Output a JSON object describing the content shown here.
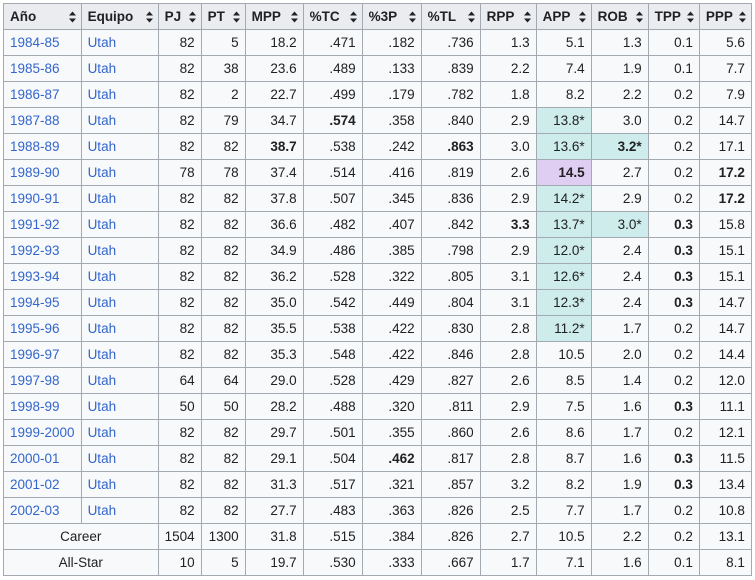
{
  "headers": [
    "Año",
    "Equipo",
    "PJ",
    "PT",
    "MPP",
    "%TC",
    "%3P",
    "%TL",
    "RPP",
    "APP",
    "ROB",
    "TPP",
    "PPP"
  ],
  "colors": {
    "header_bg": "#eaecf0",
    "cell_bg": "#f8f9fa",
    "border": "#a2a9b1",
    "link": "#3366cc",
    "league_leader": "#cfecec",
    "record": "#e0cef2"
  },
  "rows": [
    {
      "year": "1984-85",
      "team": "Utah",
      "pj": "82",
      "pt": "5",
      "mpp": "18.2",
      "tc": ".471",
      "p3": ".182",
      "tl": ".736",
      "rpp": "1.3",
      "app": "5.1",
      "rob": "1.3",
      "tpp": "0.1",
      "ppp": "5.6"
    },
    {
      "year": "1985-86",
      "team": "Utah",
      "pj": "82",
      "pt": "38",
      "mpp": "23.6",
      "tc": ".489",
      "p3": ".133",
      "tl": ".839",
      "rpp": "2.2",
      "app": "7.4",
      "rob": "1.9",
      "tpp": "0.1",
      "ppp": "7.7"
    },
    {
      "year": "1986-87",
      "team": "Utah",
      "pj": "82",
      "pt": "2",
      "mpp": "22.7",
      "tc": ".499",
      "p3": ".179",
      "tl": ".782",
      "rpp": "1.8",
      "app": "8.2",
      "rob": "2.2",
      "tpp": "0.2",
      "ppp": "7.9"
    },
    {
      "year": "1987-88",
      "team": "Utah",
      "pj": "82",
      "pt": "79",
      "mpp": "34.7",
      "tc": ".574",
      "p3": ".358",
      "tl": ".840",
      "rpp": "2.9",
      "app": "13.8*",
      "rob": "3.0",
      "tpp": "0.2",
      "ppp": "14.7"
    },
    {
      "year": "1988-89",
      "team": "Utah",
      "pj": "82",
      "pt": "82",
      "mpp": "38.7",
      "tc": ".538",
      "p3": ".242",
      "tl": ".863",
      "rpp": "3.0",
      "app": "13.6*",
      "rob": "3.2*",
      "tpp": "0.2",
      "ppp": "17.1"
    },
    {
      "year": "1989-90",
      "team": "Utah",
      "pj": "78",
      "pt": "78",
      "mpp": "37.4",
      "tc": ".514",
      "p3": ".416",
      "tl": ".819",
      "rpp": "2.6",
      "app": "14.5",
      "rob": "2.7",
      "tpp": "0.2",
      "ppp": "17.2"
    },
    {
      "year": "1990-91",
      "team": "Utah",
      "pj": "82",
      "pt": "82",
      "mpp": "37.8",
      "tc": ".507",
      "p3": ".345",
      "tl": ".836",
      "rpp": "2.9",
      "app": "14.2*",
      "rob": "2.9",
      "tpp": "0.2",
      "ppp": "17.2"
    },
    {
      "year": "1991-92",
      "team": "Utah",
      "pj": "82",
      "pt": "82",
      "mpp": "36.6",
      "tc": ".482",
      "p3": ".407",
      "tl": ".842",
      "rpp": "3.3",
      "app": "13.7*",
      "rob": "3.0*",
      "tpp": "0.3",
      "ppp": "15.8"
    },
    {
      "year": "1992-93",
      "team": "Utah",
      "pj": "82",
      "pt": "82",
      "mpp": "34.9",
      "tc": ".486",
      "p3": ".385",
      "tl": ".798",
      "rpp": "2.9",
      "app": "12.0*",
      "rob": "2.4",
      "tpp": "0.3",
      "ppp": "15.1"
    },
    {
      "year": "1993-94",
      "team": "Utah",
      "pj": "82",
      "pt": "82",
      "mpp": "36.2",
      "tc": ".528",
      "p3": ".322",
      "tl": ".805",
      "rpp": "3.1",
      "app": "12.6*",
      "rob": "2.4",
      "tpp": "0.3",
      "ppp": "15.1"
    },
    {
      "year": "1994-95",
      "team": "Utah",
      "pj": "82",
      "pt": "82",
      "mpp": "35.0",
      "tc": ".542",
      "p3": ".449",
      "tl": ".804",
      "rpp": "3.1",
      "app": "12.3*",
      "rob": "2.4",
      "tpp": "0.3",
      "ppp": "14.7"
    },
    {
      "year": "1995-96",
      "team": "Utah",
      "pj": "82",
      "pt": "82",
      "mpp": "35.5",
      "tc": ".538",
      "p3": ".422",
      "tl": ".830",
      "rpp": "2.8",
      "app": "11.2*",
      "rob": "1.7",
      "tpp": "0.2",
      "ppp": "14.7"
    },
    {
      "year": "1996-97",
      "team": "Utah",
      "pj": "82",
      "pt": "82",
      "mpp": "35.3",
      "tc": ".548",
      "p3": ".422",
      "tl": ".846",
      "rpp": "2.8",
      "app": "10.5",
      "rob": "2.0",
      "tpp": "0.2",
      "ppp": "14.4"
    },
    {
      "year": "1997-98",
      "team": "Utah",
      "pj": "64",
      "pt": "64",
      "mpp": "29.0",
      "tc": ".528",
      "p3": ".429",
      "tl": ".827",
      "rpp": "2.6",
      "app": "8.5",
      "rob": "1.4",
      "tpp": "0.2",
      "ppp": "12.0"
    },
    {
      "year": "1998-99",
      "team": "Utah",
      "pj": "50",
      "pt": "50",
      "mpp": "28.2",
      "tc": ".488",
      "p3": ".320",
      "tl": ".811",
      "rpp": "2.9",
      "app": "7.5",
      "rob": "1.6",
      "tpp": "0.3",
      "ppp": "11.1"
    },
    {
      "year": "1999-2000",
      "team": "Utah",
      "pj": "82",
      "pt": "82",
      "mpp": "29.7",
      "tc": ".501",
      "p3": ".355",
      "tl": ".860",
      "rpp": "2.6",
      "app": "8.6",
      "rob": "1.7",
      "tpp": "0.2",
      "ppp": "12.1"
    },
    {
      "year": "2000-01",
      "team": "Utah",
      "pj": "82",
      "pt": "82",
      "mpp": "29.1",
      "tc": ".504",
      "p3": ".462",
      "tl": ".817",
      "rpp": "2.8",
      "app": "8.7",
      "rob": "1.6",
      "tpp": "0.3",
      "ppp": "11.5"
    },
    {
      "year": "2001-02",
      "team": "Utah",
      "pj": "82",
      "pt": "82",
      "mpp": "31.3",
      "tc": ".517",
      "p3": ".321",
      "tl": ".857",
      "rpp": "3.2",
      "app": "8.2",
      "rob": "1.9",
      "tpp": "0.3",
      "ppp": "13.4"
    },
    {
      "year": "2002-03",
      "team": "Utah",
      "pj": "82",
      "pt": "82",
      "mpp": "27.7",
      "tc": ".483",
      "p3": ".363",
      "tl": ".826",
      "rpp": "2.5",
      "app": "7.7",
      "rob": "1.7",
      "tpp": "0.2",
      "ppp": "10.8"
    }
  ],
  "summary": [
    {
      "label": "Career",
      "pj": "1504",
      "pt": "1300",
      "mpp": "31.8",
      "tc": ".515",
      "p3": ".384",
      "tl": ".826",
      "rpp": "2.7",
      "app": "10.5",
      "rob": "2.2",
      "tpp": "0.2",
      "ppp": "13.1"
    },
    {
      "label": "All-Star",
      "pj": "10",
      "pt": "5",
      "mpp": "19.7",
      "tc": ".530",
      "p3": ".333",
      "tl": ".667",
      "rpp": "1.7",
      "app": "7.1",
      "rob": "1.6",
      "tpp": "0.1",
      "ppp": "8.1"
    }
  ]
}
